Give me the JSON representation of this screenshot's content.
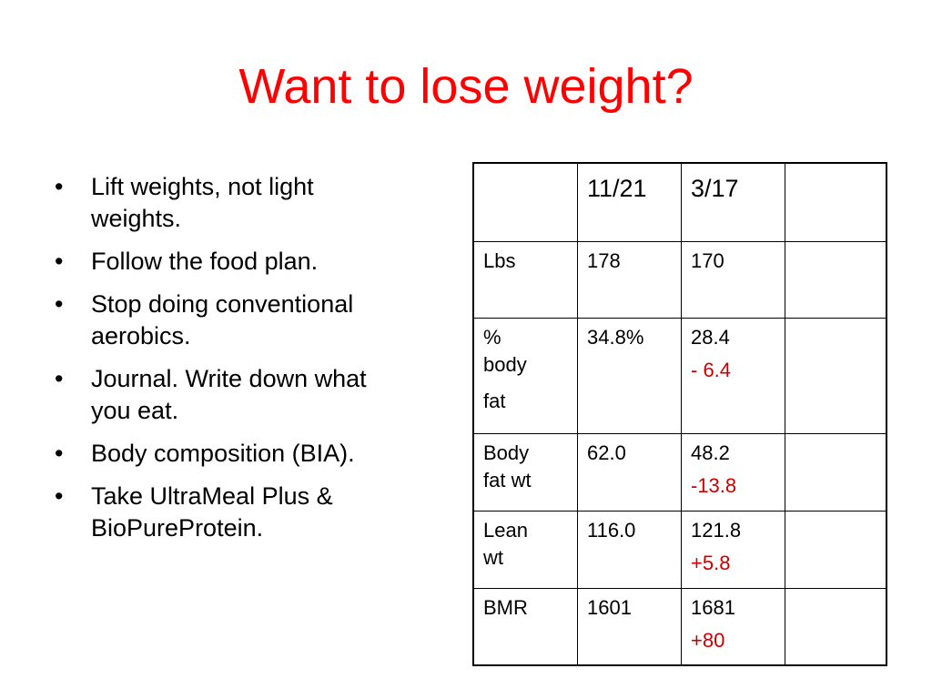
{
  "slide": {
    "title": "Want to lose weight?",
    "bullets": [
      {
        "line1": "Lift weights, not light",
        "line2": "weights."
      },
      {
        "line1": "Follow the food plan.",
        "line2": ""
      },
      {
        "line1": "Stop doing conventional",
        "line2": "aerobics."
      },
      {
        "line1": "Journal. Write down what",
        "line2": "you eat."
      },
      {
        "line1": "Body composition (BIA).",
        "line2": ""
      },
      {
        "line1": "Take UltraMeal Plus &",
        "line2": "BioPureProtein."
      }
    ],
    "bullet_char": "•"
  },
  "table": {
    "header": [
      "",
      "11/21",
      "3/17",
      ""
    ],
    "rows": [
      {
        "label1": "Lbs",
        "label2": "",
        "label3": "",
        "v1": "178",
        "v2": "170",
        "delta": ""
      },
      {
        "label1": "%",
        "label2": "body",
        "label3": "fat",
        "v1": "34.8%",
        "v2": "28.4",
        "delta": "- 6.4"
      },
      {
        "label1": "Body",
        "label2": "fat wt",
        "label3": "",
        "v1": "62.0",
        "v2": "48.2",
        "delta": "-13.8"
      },
      {
        "label1": "Lean",
        "label2": "wt",
        "label3": "",
        "v1": "116.0",
        "v2": "121.8",
        "delta": "+5.8"
      },
      {
        "label1": "BMR",
        "label2": "",
        "label3": "",
        "v1": "1601",
        "v2": "1681",
        "delta": "+80"
      }
    ]
  },
  "colors": {
    "title": "#ff0000",
    "delta": "#cc0000"
  }
}
